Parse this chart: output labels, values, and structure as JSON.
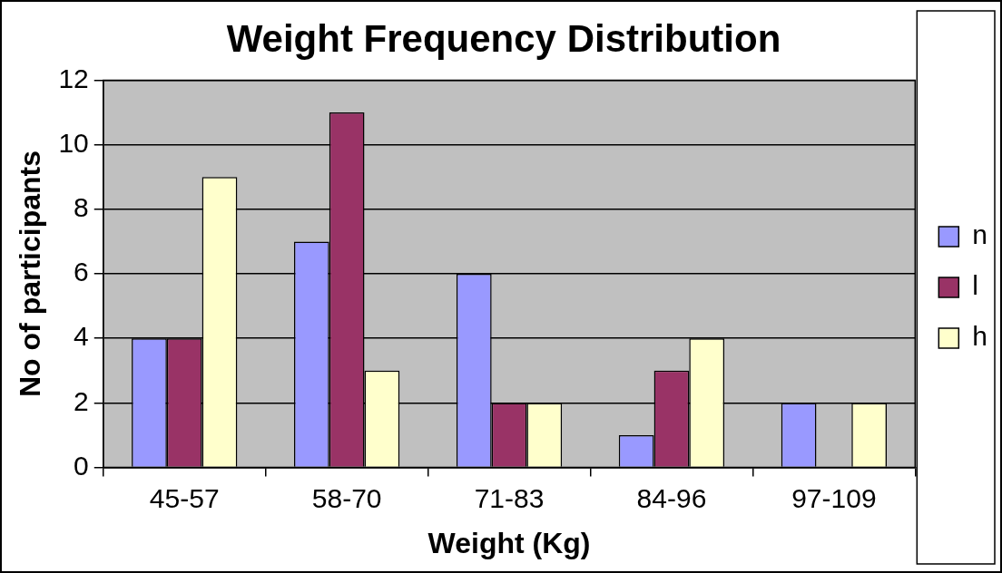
{
  "chart_data": {
    "type": "bar",
    "title": "Weight Frequency Distribution",
    "xlabel": "Weight (Kg)",
    "ylabel": "No of participants",
    "categories": [
      "45-57",
      "58-70",
      "71-83",
      "84-96",
      "97-109"
    ],
    "series": [
      {
        "name": "n",
        "color": "#9999ff",
        "values": [
          4,
          7,
          6,
          1,
          2
        ]
      },
      {
        "name": "l",
        "color": "#993366",
        "values": [
          4,
          11,
          2,
          3,
          0
        ]
      },
      {
        "name": "h",
        "color": "#ffffcc",
        "values": [
          9,
          3,
          2,
          4,
          2
        ]
      }
    ],
    "ylim": [
      0,
      12
    ],
    "yticks": [
      0,
      2,
      4,
      6,
      8,
      10,
      12
    ],
    "grid": "y",
    "legend": "right"
  }
}
